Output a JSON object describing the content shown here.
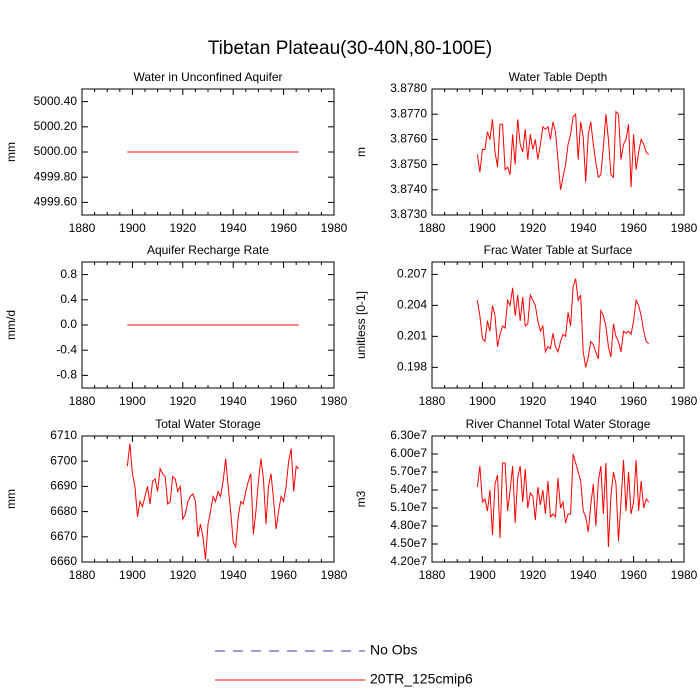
{
  "title": "Tibetan Plateau(30-40N,80-100E)",
  "legend": [
    {
      "label": "No Obs",
      "color": "#3a3ab0",
      "dash": true
    },
    {
      "label": "20TR_125cmip6",
      "color": "#ff0000",
      "dash": false
    }
  ],
  "chart_data": [
    {
      "type": "line",
      "title": "Water in Unconfined Aquifer",
      "ylabel": "mm",
      "color": "#ff0000",
      "x": [
        1898,
        1899,
        1900,
        1901,
        1902,
        1903,
        1904,
        1905,
        1906,
        1907,
        1908,
        1909,
        1910,
        1911,
        1912,
        1913,
        1914,
        1915,
        1916,
        1917,
        1918,
        1919,
        1920,
        1921,
        1922,
        1923,
        1924,
        1925,
        1926,
        1927,
        1928,
        1929,
        1930,
        1931,
        1932,
        1933,
        1934,
        1935,
        1936,
        1937,
        1938,
        1939,
        1940,
        1941,
        1942,
        1943,
        1944,
        1945,
        1946,
        1947,
        1948,
        1949,
        1950,
        1951,
        1952,
        1953,
        1954,
        1955,
        1956,
        1957,
        1958,
        1959,
        1960,
        1961,
        1962,
        1963,
        1964,
        1965,
        1966
      ],
      "values": [
        5000,
        5000,
        5000,
        5000,
        5000,
        5000,
        5000,
        5000,
        5000,
        5000,
        5000,
        5000,
        5000,
        5000,
        5000,
        5000,
        5000,
        5000,
        5000,
        5000,
        5000,
        5000,
        5000,
        5000,
        5000,
        5000,
        5000,
        5000,
        5000,
        5000,
        5000,
        5000,
        5000,
        5000,
        5000,
        5000,
        5000,
        5000,
        5000,
        5000,
        5000,
        5000,
        5000,
        5000,
        5000,
        5000,
        5000,
        5000,
        5000,
        5000,
        5000,
        5000,
        5000,
        5000,
        5000,
        5000,
        5000,
        5000,
        5000,
        5000,
        5000,
        5000,
        5000,
        5000,
        5000,
        5000,
        5000,
        5000,
        5000
      ],
      "xlim": [
        1880,
        1980
      ],
      "xticks": [
        1880,
        1900,
        1920,
        1940,
        1960,
        1980
      ],
      "ylim": [
        4999.5,
        5000.5
      ],
      "yticks": [
        {
          "value": 4999.6,
          "label": "4999.60"
        },
        {
          "value": 4999.8,
          "label": "4999.80"
        },
        {
          "value": 5000,
          "label": "5000.00"
        },
        {
          "value": 5000.2,
          "label": "5000.20"
        },
        {
          "value": 5000.4,
          "label": "5000.40"
        }
      ]
    },
    {
      "type": "line",
      "title": "Water Table Depth",
      "ylabel": "m",
      "color": "#ff0000",
      "x": [
        1898,
        1899,
        1900,
        1901,
        1902,
        1903,
        1904,
        1905,
        1906,
        1907,
        1908,
        1909,
        1910,
        1911,
        1912,
        1913,
        1914,
        1915,
        1916,
        1917,
        1918,
        1919,
        1920,
        1921,
        1922,
        1923,
        1924,
        1925,
        1926,
        1927,
        1928,
        1929,
        1930,
        1931,
        1932,
        1933,
        1934,
        1935,
        1936,
        1937,
        1938,
        1939,
        1940,
        1941,
        1942,
        1943,
        1944,
        1945,
        1946,
        1947,
        1948,
        1949,
        1950,
        1951,
        1952,
        1953,
        1954,
        1955,
        1956,
        1957,
        1958,
        1959,
        1960,
        1961,
        1962,
        1963,
        1964,
        1965,
        1966
      ],
      "values": [
        3.8754,
        3.8747,
        3.8756,
        3.8756,
        3.8763,
        3.876,
        3.8768,
        3.8755,
        3.8749,
        3.8766,
        3.8766,
        3.8748,
        3.8749,
        3.8746,
        3.8762,
        3.875,
        3.8768,
        3.8758,
        3.8755,
        3.8764,
        3.8752,
        3.8762,
        3.8756,
        3.876,
        3.8752,
        3.8758,
        3.8765,
        3.8764,
        3.8765,
        3.876,
        3.8767,
        3.8763,
        3.8752,
        3.874,
        3.8745,
        3.875,
        3.8758,
        3.8762,
        3.8769,
        3.877,
        3.8752,
        3.8767,
        3.8761,
        3.8743,
        3.8762,
        3.8767,
        3.8758,
        3.8751,
        3.8745,
        3.8746,
        3.8757,
        3.877,
        3.876,
        3.8746,
        3.8745,
        3.8771,
        3.877,
        3.8752,
        3.8758,
        3.876,
        3.8766,
        3.8741,
        3.8762,
        3.8748,
        3.8755,
        3.876,
        3.8758,
        3.8755,
        3.8754
      ],
      "xlim": [
        1880,
        1980
      ],
      "xticks": [
        1880,
        1900,
        1920,
        1940,
        1960,
        1980
      ],
      "ylim": [
        3.873,
        3.878
      ],
      "yticks": [
        {
          "value": 3.873,
          "label": "3.8730"
        },
        {
          "value": 3.874,
          "label": "3.8740"
        },
        {
          "value": 3.875,
          "label": "3.8750"
        },
        {
          "value": 3.876,
          "label": "3.8760"
        },
        {
          "value": 3.877,
          "label": "3.8770"
        },
        {
          "value": 3.878,
          "label": "3.8780"
        }
      ]
    },
    {
      "type": "line",
      "title": "Aquifer Recharge Rate",
      "ylabel": "mm/d",
      "color": "#ff0000",
      "x": [
        1898,
        1899,
        1900,
        1901,
        1902,
        1903,
        1904,
        1905,
        1906,
        1907,
        1908,
        1909,
        1910,
        1911,
        1912,
        1913,
        1914,
        1915,
        1916,
        1917,
        1918,
        1919,
        1920,
        1921,
        1922,
        1923,
        1924,
        1925,
        1926,
        1927,
        1928,
        1929,
        1930,
        1931,
        1932,
        1933,
        1934,
        1935,
        1936,
        1937,
        1938,
        1939,
        1940,
        1941,
        1942,
        1943,
        1944,
        1945,
        1946,
        1947,
        1948,
        1949,
        1950,
        1951,
        1952,
        1953,
        1954,
        1955,
        1956,
        1957,
        1958,
        1959,
        1960,
        1961,
        1962,
        1963,
        1964,
        1965,
        1966
      ],
      "values": [
        0,
        0,
        0,
        0,
        0,
        0,
        0,
        0,
        0,
        0,
        0,
        0,
        0,
        0,
        0,
        0,
        0,
        0,
        0,
        0,
        0,
        0,
        0,
        0,
        0,
        0,
        0,
        0,
        0,
        0,
        0,
        0,
        0,
        0,
        0,
        0,
        0,
        0,
        0,
        0,
        0,
        0,
        0,
        0,
        0,
        0,
        0,
        0,
        0,
        0,
        0,
        0,
        0,
        0,
        0,
        0,
        0,
        0,
        0,
        0,
        0,
        0,
        0,
        0,
        0,
        0,
        0,
        0,
        0
      ],
      "xlim": [
        1880,
        1980
      ],
      "xticks": [
        1880,
        1900,
        1920,
        1940,
        1960,
        1980
      ],
      "ylim": [
        -1,
        1
      ],
      "yticks": [
        -0.8,
        -0.4,
        {
          "value": 0,
          "label": "0.0"
        },
        0.4,
        0.8
      ]
    },
    {
      "type": "line",
      "title": "Frac Water Table at Surface",
      "ylabel": "unitless [0-1]",
      "color": "#ff0000",
      "x": [
        1898,
        1899,
        1900,
        1901,
        1902,
        1903,
        1904,
        1905,
        1906,
        1907,
        1908,
        1909,
        1910,
        1911,
        1912,
        1913,
        1914,
        1915,
        1916,
        1917,
        1918,
        1919,
        1920,
        1921,
        1922,
        1923,
        1924,
        1925,
        1926,
        1927,
        1928,
        1929,
        1930,
        1931,
        1932,
        1933,
        1934,
        1935,
        1936,
        1937,
        1938,
        1939,
        1940,
        1941,
        1942,
        1943,
        1944,
        1945,
        1946,
        1947,
        1948,
        1949,
        1950,
        1951,
        1952,
        1953,
        1954,
        1955,
        1956,
        1957,
        1958,
        1959,
        1960,
        1961,
        1962,
        1963,
        1964,
        1965,
        1966
      ],
      "values": [
        0.2045,
        0.203,
        0.2008,
        0.2005,
        0.2025,
        0.2015,
        0.204,
        0.203,
        0.2,
        0.2012,
        0.202,
        0.2018,
        0.2045,
        0.204,
        0.2057,
        0.203,
        0.205,
        0.2025,
        0.2048,
        0.202,
        0.2022,
        0.205,
        0.2045,
        0.204,
        0.2025,
        0.2015,
        0.202,
        0.1995,
        0.2,
        0.1998,
        0.2013,
        0.2,
        0.1995,
        0.2005,
        0.2012,
        0.201,
        0.2033,
        0.202,
        0.2058,
        0.2066,
        0.2045,
        0.205,
        0.1995,
        0.198,
        0.199,
        0.2005,
        0.2002,
        0.1995,
        0.1988,
        0.2035,
        0.203,
        0.202,
        0.2,
        0.199,
        0.2022,
        0.201,
        0.2005,
        0.1995,
        0.2015,
        0.2013,
        0.2015,
        0.2012,
        0.2025,
        0.2045,
        0.204,
        0.203,
        0.2015,
        0.2005,
        0.2003
      ],
      "xlim": [
        1880,
        1980
      ],
      "xticks": [
        1880,
        1900,
        1920,
        1940,
        1960,
        1980
      ],
      "ylim": [
        0.196,
        0.2082
      ],
      "yticks": [
        0.198,
        0.201,
        0.204,
        0.207
      ]
    },
    {
      "type": "line",
      "title": "Total Water Storage",
      "ylabel": "mm",
      "color": "#ff0000",
      "x": [
        1898,
        1899,
        1900,
        1901,
        1902,
        1903,
        1904,
        1905,
        1906,
        1907,
        1908,
        1909,
        1910,
        1911,
        1912,
        1913,
        1914,
        1915,
        1916,
        1917,
        1918,
        1919,
        1920,
        1921,
        1922,
        1923,
        1924,
        1925,
        1926,
        1927,
        1928,
        1929,
        1930,
        1931,
        1932,
        1933,
        1934,
        1935,
        1936,
        1937,
        1938,
        1939,
        1940,
        1941,
        1942,
        1943,
        1944,
        1945,
        1946,
        1947,
        1948,
        1949,
        1950,
        1951,
        1952,
        1953,
        1954,
        1955,
        1956,
        1957,
        1958,
        1959,
        1960,
        1961,
        1962,
        1963,
        1964,
        1965,
        1966
      ],
      "values": [
        6698,
        6707,
        6695,
        6690,
        6678,
        6684,
        6682,
        6686,
        6690,
        6683,
        6692,
        6693,
        6688,
        6697,
        6695,
        6694,
        6683,
        6684,
        6694,
        6693,
        6688,
        6690,
        6677,
        6679,
        6684,
        6686,
        6687,
        6684,
        6670,
        6675,
        6670,
        6661,
        6675,
        6680,
        6686,
        6684,
        6688,
        6686,
        6692,
        6701,
        6690,
        6680,
        6668,
        6666,
        6678,
        6684,
        6683,
        6688,
        6692,
        6695,
        6671,
        6680,
        6692,
        6701,
        6693,
        6675,
        6690,
        6695,
        6685,
        6673,
        6680,
        6686,
        6684,
        6690,
        6700,
        6705,
        6688,
        6698,
        6697
      ],
      "xlim": [
        1880,
        1980
      ],
      "xticks": [
        1880,
        1900,
        1920,
        1940,
        1960,
        1980
      ],
      "ylim": [
        6660,
        6710
      ],
      "yticks": [
        6660,
        6670,
        6680,
        6690,
        6700,
        6710
      ]
    },
    {
      "type": "line",
      "title": "River Channel Total Water Storage",
      "ylabel": "m3",
      "color": "#ff0000",
      "x": [
        1898,
        1899,
        1900,
        1901,
        1902,
        1903,
        1904,
        1905,
        1906,
        1907,
        1908,
        1909,
        1910,
        1911,
        1912,
        1913,
        1914,
        1915,
        1916,
        1917,
        1918,
        1919,
        1920,
        1921,
        1922,
        1923,
        1924,
        1925,
        1926,
        1927,
        1928,
        1929,
        1930,
        1931,
        1932,
        1933,
        1934,
        1935,
        1936,
        1937,
        1938,
        1939,
        1940,
        1941,
        1942,
        1943,
        1944,
        1945,
        1946,
        1947,
        1948,
        1949,
        1950,
        1951,
        1952,
        1953,
        1954,
        1955,
        1956,
        1957,
        1958,
        1959,
        1960,
        1961,
        1962,
        1963,
        1964,
        1965,
        1966
      ],
      "values": [
        54500000.0,
        58000000.0,
        52000000.0,
        52500000.0,
        50500000.0,
        54000000.0,
        46500000.0,
        55000000.0,
        56500000.0,
        46000000.0,
        58500000.0,
        58500000.0,
        50500000.0,
        54000000.0,
        58000000.0,
        48500000.0,
        56000000.0,
        58000000.0,
        52000000.0,
        57500000.0,
        51000000.0,
        53500000.0,
        53000000.0,
        49000000.0,
        54500000.0,
        51500000.0,
        54000000.0,
        50000000.0,
        55500000.0,
        49500000.0,
        50000000.0,
        49500000.0,
        56000000.0,
        51000000.0,
        52000000.0,
        48500000.0,
        50000000.0,
        50000000.0,
        60000000.0,
        58500000.0,
        57000000.0,
        55500000.0,
        50500000.0,
        49500000.0,
        47000000.0,
        51500000.0,
        55000000.0,
        48000000.0,
        55500000.0,
        58000000.0,
        50000000.0,
        58500000.0,
        44500000.0,
        53000000.0,
        57000000.0,
        55000000.0,
        45500000.0,
        52000000.0,
        59000000.0,
        50500000.0,
        57000000.0,
        50000000.0,
        52000000.0,
        59000000.0,
        50500000.0,
        55500000.0,
        51000000.0,
        52500000.0,
        52000000.0
      ],
      "xlim": [
        1880,
        1980
      ],
      "xticks": [
        1880,
        1900,
        1920,
        1940,
        1960,
        1980
      ],
      "ylim": [
        42000000.0,
        63000000.0
      ],
      "yticks": [
        {
          "value": 42000000.0,
          "label": "4.20e7"
        },
        {
          "value": 45000000.0,
          "label": "4.50e7"
        },
        {
          "value": 48000000.0,
          "label": "4.80e7"
        },
        {
          "value": 51000000.0,
          "label": "5.10e7"
        },
        {
          "value": 54000000.0,
          "label": "5.40e7"
        },
        {
          "value": 57000000.0,
          "label": "5.70e7"
        },
        {
          "value": 60000000.0,
          "label": "6.00e7"
        },
        {
          "value": 63000000.0,
          "label": "6.30e7"
        }
      ]
    }
  ]
}
